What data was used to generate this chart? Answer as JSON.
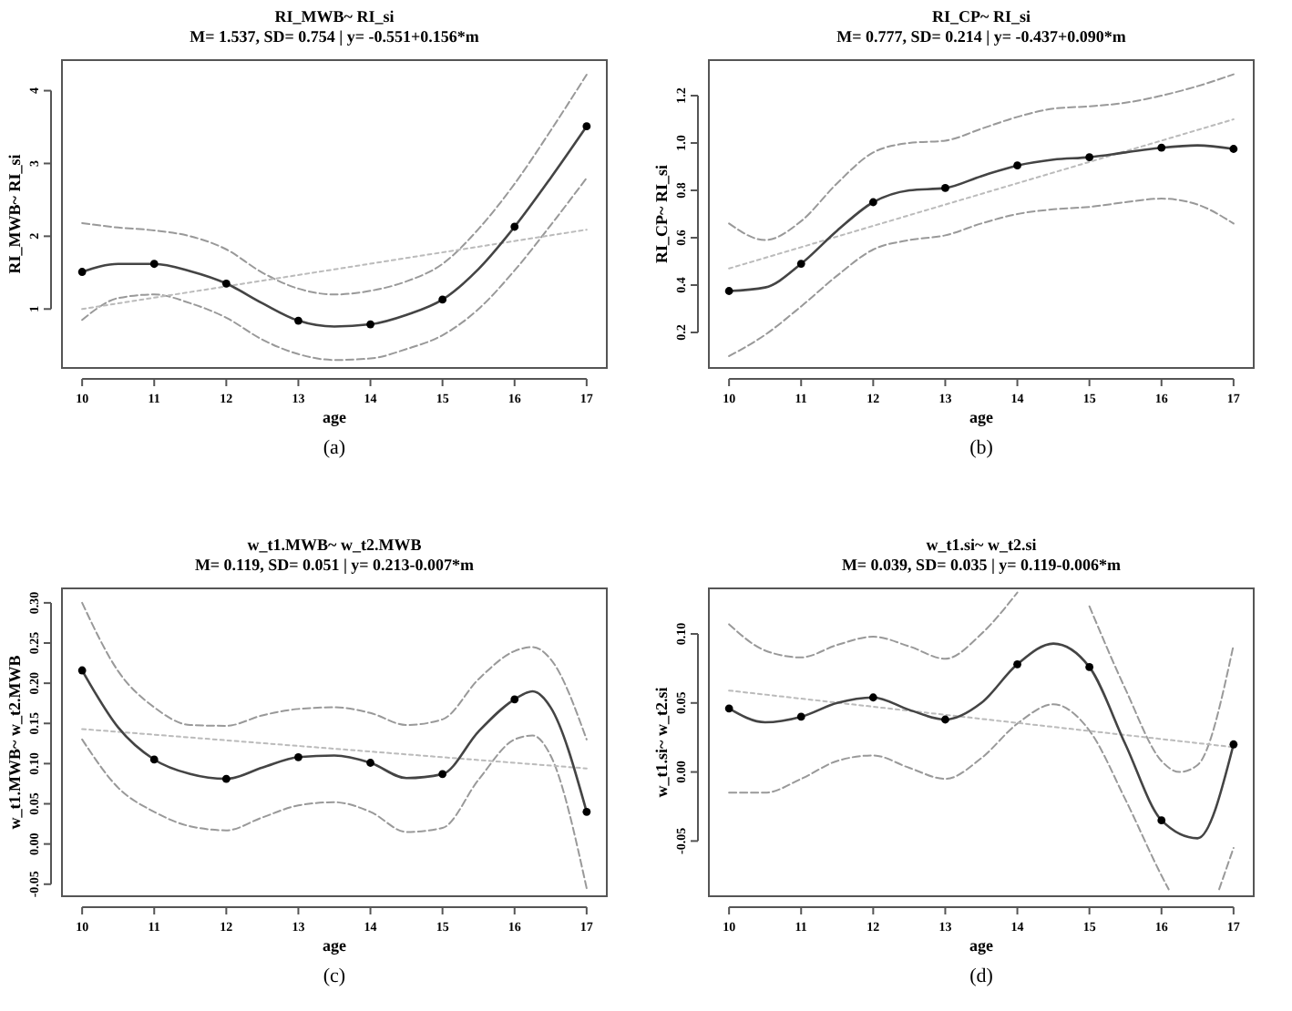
{
  "chart_data": [
    {
      "type": "line",
      "title": "RI_MWB~ RI_si",
      "subtitle": "M= 1.537, SD= 0.754 | y= -0.551+0.156*m",
      "xlabel": "age",
      "ylabel": "RI_MWB~ RI_si",
      "annotations": [
        "(a)"
      ],
      "xlim": [
        9.72,
        17.28
      ],
      "ylim": [
        0.19,
        4.42
      ],
      "xticks": [
        10,
        11,
        12,
        13,
        14,
        15,
        16,
        17
      ],
      "yticks": [
        1,
        2,
        3,
        4
      ],
      "grid": false,
      "series": [
        {
          "color": "#999999",
          "line_style": "dashed",
          "x": [
            10,
            10.5,
            11,
            11.5,
            12,
            12.5,
            13,
            13.5,
            14,
            14.5,
            15,
            15.5,
            16,
            16.5,
            17
          ],
          "values": [
            2.18,
            2.12,
            2.08,
            2.0,
            1.82,
            1.5,
            1.28,
            1.2,
            1.25,
            1.38,
            1.62,
            2.1,
            2.72,
            3.45,
            4.22
          ]
        },
        {
          "color": "#999999",
          "line_style": "dashed",
          "x": [
            10,
            10.5,
            11,
            11.5,
            12,
            12.5,
            13,
            13.5,
            14,
            14.5,
            15,
            15.5,
            16,
            16.5,
            17
          ],
          "values": [
            0.85,
            1.15,
            1.2,
            1.08,
            0.88,
            0.58,
            0.38,
            0.3,
            0.32,
            0.45,
            0.64,
            1.0,
            1.53,
            2.15,
            2.8
          ]
        },
        {
          "color": "#bbbbbb",
          "line_style": "dotted",
          "x": [
            10,
            17
          ],
          "values": [
            1.0,
            2.09
          ]
        },
        {
          "color": "#444444",
          "line_style": "solid",
          "x": [
            10,
            10.5,
            11,
            11.5,
            12,
            12.5,
            13,
            13.5,
            14,
            14.5,
            15,
            15.5,
            16,
            16.5,
            17
          ],
          "values": [
            1.51,
            1.62,
            1.62,
            1.52,
            1.35,
            1.08,
            0.84,
            0.76,
            0.79,
            0.92,
            1.13,
            1.55,
            2.13,
            2.8,
            3.51
          ]
        },
        {
          "type": "scatter",
          "color": "#000000",
          "marker": "circle",
          "x": [
            10,
            11,
            12,
            13,
            14,
            15,
            16,
            17
          ],
          "values": [
            1.51,
            1.62,
            1.35,
            0.84,
            0.79,
            1.13,
            2.13,
            3.51
          ]
        }
      ]
    },
    {
      "type": "line",
      "title": "RI_CP~ RI_si",
      "subtitle": "M= 0.777, SD= 0.214 | y= -0.437+0.090*m",
      "xlabel": "age",
      "ylabel": "RI_CP~ RI_si",
      "annotations": [
        "(b)"
      ],
      "xlim": [
        9.72,
        17.28
      ],
      "ylim": [
        0.05,
        1.35
      ],
      "xticks": [
        10,
        11,
        12,
        13,
        14,
        15,
        16,
        17
      ],
      "yticks": [
        {
          "value": 0.2,
          "label": "0.2"
        },
        {
          "value": 0.4,
          "label": "0.4"
        },
        {
          "value": 0.6,
          "label": "0.6"
        },
        {
          "value": 0.8,
          "label": "0.8"
        },
        {
          "value": 1.0,
          "label": "1.0"
        },
        {
          "value": 1.2,
          "label": "1.2"
        }
      ],
      "grid": false,
      "series": [
        {
          "color": "#999999",
          "line_style": "dashed",
          "x": [
            10,
            10.5,
            11,
            11.5,
            12,
            12.5,
            13,
            13.5,
            14,
            14.5,
            15,
            15.5,
            16,
            16.5,
            17
          ],
          "values": [
            0.66,
            0.59,
            0.67,
            0.83,
            0.96,
            1.0,
            1.01,
            1.06,
            1.11,
            1.145,
            1.155,
            1.17,
            1.2,
            1.24,
            1.29
          ]
        },
        {
          "color": "#999999",
          "line_style": "dashed",
          "x": [
            10,
            10.5,
            11,
            11.5,
            12,
            12.5,
            13,
            13.5,
            14,
            14.5,
            15,
            15.5,
            16,
            16.5,
            17
          ],
          "values": [
            0.1,
            0.19,
            0.31,
            0.44,
            0.55,
            0.59,
            0.61,
            0.66,
            0.7,
            0.72,
            0.73,
            0.75,
            0.765,
            0.74,
            0.66
          ]
        },
        {
          "color": "#bbbbbb",
          "line_style": "dotted",
          "x": [
            10,
            17
          ],
          "values": [
            0.47,
            1.1
          ]
        },
        {
          "color": "#444444",
          "line_style": "solid",
          "x": [
            10,
            10.5,
            11,
            11.5,
            12,
            12.5,
            13,
            13.5,
            14,
            14.5,
            15,
            15.5,
            16,
            16.5,
            17
          ],
          "values": [
            0.375,
            0.39,
            0.49,
            0.63,
            0.75,
            0.8,
            0.81,
            0.86,
            0.905,
            0.93,
            0.94,
            0.96,
            0.98,
            0.99,
            0.975
          ]
        },
        {
          "type": "scatter",
          "color": "#000000",
          "marker": "circle",
          "x": [
            10,
            11,
            12,
            13,
            14,
            15,
            16,
            17
          ],
          "values": [
            0.375,
            0.49,
            0.75,
            0.81,
            0.905,
            0.94,
            0.98,
            0.975
          ]
        }
      ]
    },
    {
      "type": "line",
      "title": "w_t1.MWB~ w_t2.MWB",
      "subtitle": "M= 0.119, SD= 0.051 | y= 0.213-0.007*m",
      "xlabel": "age",
      "ylabel": "w_t1.MWB~ w_t2.MWB",
      "annotations": [
        "(c)"
      ],
      "xlim": [
        9.72,
        17.28
      ],
      "ylim": [
        -0.065,
        0.318
      ],
      "xticks": [
        10,
        11,
        12,
        13,
        14,
        15,
        16,
        17
      ],
      "yticks": [
        {
          "value": -0.05,
          "label": "-0.05"
        },
        {
          "value": 0,
          "label": "0.00"
        },
        {
          "value": 0.05,
          "label": "0.05"
        },
        {
          "value": 0.1,
          "label": "0.10"
        },
        {
          "value": 0.15,
          "label": "0.15"
        },
        {
          "value": 0.2,
          "label": "0.20"
        },
        {
          "value": 0.25,
          "label": "0.25"
        },
        {
          "value": 0.3,
          "label": "0.30"
        }
      ],
      "grid": false,
      "series": [
        {
          "color": "#999999",
          "line_style": "dashed",
          "x": [
            10,
            10.5,
            11,
            11.5,
            12,
            12.5,
            13,
            13.5,
            14,
            14.5,
            15,
            15.5,
            16,
            16.25,
            16.5,
            17
          ],
          "values": [
            0.3,
            0.215,
            0.17,
            0.148,
            0.147,
            0.16,
            0.168,
            0.17,
            0.163,
            0.148,
            0.155,
            0.205,
            0.24,
            0.245,
            0.23,
            0.13
          ]
        },
        {
          "color": "#999999",
          "line_style": "dashed",
          "x": [
            10,
            10.5,
            11,
            11.5,
            12,
            12.5,
            13,
            13.5,
            14,
            14.5,
            15,
            15.5,
            16,
            16.25,
            16.5,
            17
          ],
          "values": [
            0.13,
            0.07,
            0.04,
            0.022,
            0.017,
            0.033,
            0.048,
            0.052,
            0.04,
            0.015,
            0.02,
            0.08,
            0.13,
            0.135,
            0.11,
            -0.055
          ]
        },
        {
          "color": "#bbbbbb",
          "line_style": "dotted",
          "x": [
            10,
            17
          ],
          "values": [
            0.143,
            0.094
          ]
        },
        {
          "color": "#444444",
          "line_style": "solid",
          "x": [
            10,
            10.5,
            11,
            11.5,
            12,
            12.5,
            13,
            13.5,
            14,
            14.5,
            15,
            15.5,
            16,
            16.25,
            16.5,
            17
          ],
          "values": [
            0.216,
            0.145,
            0.105,
            0.087,
            0.081,
            0.095,
            0.108,
            0.11,
            0.101,
            0.082,
            0.087,
            0.14,
            0.18,
            0.19,
            0.17,
            0.04
          ]
        },
        {
          "type": "scatter",
          "color": "#000000",
          "marker": "circle",
          "x": [
            10,
            11,
            12,
            13,
            14,
            15,
            16,
            17
          ],
          "values": [
            0.216,
            0.105,
            0.081,
            0.108,
            0.101,
            0.087,
            0.18,
            0.04
          ]
        }
      ]
    },
    {
      "type": "line",
      "title": "w_t1.si~ w_t2.si",
      "subtitle": "M= 0.039, SD= 0.035 | y= 0.119-0.006*m",
      "xlabel": "age",
      "ylabel": "w_t1.si~ w_t2.si",
      "annotations": [
        "(d)"
      ],
      "xlim": [
        9.72,
        17.28
      ],
      "ylim": [
        -0.09,
        0.133
      ],
      "xticks": [
        10,
        11,
        12,
        13,
        14,
        15,
        16,
        17
      ],
      "yticks": [
        {
          "value": -0.05,
          "label": "-0.05"
        },
        {
          "value": 0,
          "label": "0.00"
        },
        {
          "value": 0.05,
          "label": "0.05"
        },
        {
          "value": 0.1,
          "label": "0.10"
        }
      ],
      "grid": false,
      "series": [
        {
          "color": "#999999",
          "line_style": "dashed",
          "x": [
            10,
            10.5,
            11,
            11.5,
            12,
            12.5,
            13,
            13.5,
            14
          ],
          "values": [
            0.107,
            0.088,
            0.083,
            0.092,
            0.098,
            0.091,
            0.082,
            0.1,
            0.13
          ]
        },
        {
          "color": "#999999",
          "line_style": "dashed",
          "x": [
            15,
            15.5,
            16,
            16.25,
            16.5,
            17
          ],
          "values": [
            0.12,
            0.06,
            0.008,
            0.0,
            0.005,
            0.092
          ]
        },
        {
          "color": "#999999",
          "line_style": "dashed",
          "x": [
            10,
            10.5,
            11,
            11.5,
            12,
            12.5,
            13,
            13.5,
            14,
            14.5,
            15,
            15.5,
            16,
            16.1
          ],
          "values": [
            -0.015,
            -0.015,
            -0.005,
            0.008,
            0.012,
            0.003,
            -0.005,
            0.01,
            0.035,
            0.049,
            0.03,
            -0.02,
            -0.075,
            -0.085
          ]
        },
        {
          "color": "#999999",
          "line_style": "dashed",
          "x": [
            16.8,
            17
          ],
          "values": [
            -0.085,
            -0.055
          ]
        },
        {
          "color": "#bbbbbb",
          "line_style": "dotted",
          "x": [
            10,
            17
          ],
          "values": [
            0.059,
            0.018
          ]
        },
        {
          "color": "#444444",
          "line_style": "solid",
          "x": [
            10,
            10.5,
            11,
            11.5,
            12,
            12.5,
            13,
            13.5,
            14,
            14.5,
            15,
            15.5,
            16,
            16.5,
            17
          ],
          "values": [
            0.046,
            0.036,
            0.04,
            0.05,
            0.054,
            0.045,
            0.038,
            0.05,
            0.078,
            0.093,
            0.076,
            0.02,
            -0.035,
            -0.048,
            0.02
          ]
        },
        {
          "type": "scatter",
          "color": "#000000",
          "marker": "circle",
          "x": [
            10,
            11,
            12,
            13,
            14,
            15,
            16,
            17
          ],
          "values": [
            0.046,
            0.04,
            0.054,
            0.038,
            0.078,
            0.076,
            -0.035,
            0.02
          ]
        }
      ]
    }
  ]
}
